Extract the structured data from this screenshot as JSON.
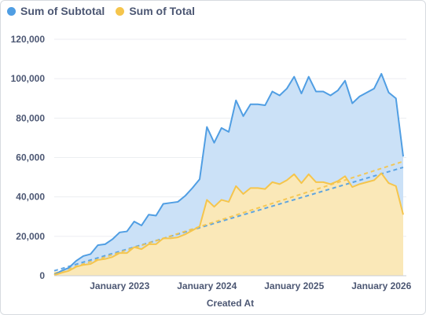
{
  "legend": {
    "items": [
      {
        "label": "Sum of Subtotal",
        "color": "#509ee3"
      },
      {
        "label": "Sum of Total",
        "color": "#f5c54c"
      }
    ]
  },
  "colors": {
    "subtotal_line": "#509ee3",
    "subtotal_fill": "#cbe1f7",
    "total_line": "#f5c54c",
    "total_fill": "#fae8b8",
    "grid": "#eceef1",
    "text": "#4c5773"
  },
  "chart_data": {
    "type": "area",
    "xlabel": "Created At",
    "ylabel": "",
    "x_type": "date",
    "xlim": [
      "2022-04",
      "2026-04"
    ],
    "ylim": [
      0,
      120000
    ],
    "y_ticks": [
      0,
      20000,
      40000,
      60000,
      80000,
      100000,
      120000
    ],
    "y_tick_labels": [
      "0",
      "20,000",
      "40,000",
      "60,000",
      "80,000",
      "100,000",
      "120,000"
    ],
    "x_ticks": [
      "2023-01",
      "2024-01",
      "2025-01",
      "2026-01"
    ],
    "x_tick_labels": [
      "January 2023",
      "January 2024",
      "January 2025",
      "January 2026"
    ],
    "grid": true,
    "legend_position": "top-left",
    "x": [
      "2022-04",
      "2022-05",
      "2022-06",
      "2022-07",
      "2022-08",
      "2022-09",
      "2022-10",
      "2022-11",
      "2022-12",
      "2023-01",
      "2023-02",
      "2023-03",
      "2023-04",
      "2023-05",
      "2023-06",
      "2023-07",
      "2023-08",
      "2023-09",
      "2023-10",
      "2023-11",
      "2023-12",
      "2024-01",
      "2024-02",
      "2024-03",
      "2024-04",
      "2024-05",
      "2024-06",
      "2024-07",
      "2024-08",
      "2024-09",
      "2024-10",
      "2024-11",
      "2024-12",
      "2025-01",
      "2025-02",
      "2025-03",
      "2025-04",
      "2025-05",
      "2025-06",
      "2025-07",
      "2025-08",
      "2025-09",
      "2025-10",
      "2025-11",
      "2025-12",
      "2026-01",
      "2026-02",
      "2026-03",
      "2026-04"
    ],
    "series": [
      {
        "name": "Sum of Subtotal",
        "color": "#509ee3",
        "values": [
          500,
          2500,
          4000,
          7500,
          10000,
          11000,
          15500,
          16000,
          18500,
          22000,
          22500,
          27500,
          25500,
          31000,
          30500,
          36500,
          37000,
          37500,
          40500,
          44500,
          49000,
          75500,
          67500,
          75000,
          73000,
          89000,
          81000,
          87000,
          87000,
          86500,
          93500,
          91500,
          95000,
          101000,
          92500,
          101000,
          93500,
          93500,
          91500,
          94000,
          99000,
          87500,
          91000,
          93000,
          95000,
          102500,
          93000,
          90000,
          60500
        ]
      },
      {
        "name": "Sum of Total",
        "color": "#f5c54c",
        "values": [
          300,
          1500,
          2500,
          4500,
          5500,
          6000,
          8000,
          8500,
          9500,
          11500,
          11500,
          14500,
          13500,
          16000,
          16000,
          19000,
          19000,
          19500,
          21000,
          23000,
          25000,
          38500,
          35000,
          38500,
          37500,
          45500,
          41500,
          44500,
          44500,
          44000,
          47500,
          46500,
          48500,
          51500,
          47000,
          51500,
          47500,
          47500,
          46500,
          48000,
          50500,
          45000,
          46500,
          47500,
          48500,
          52000,
          47000,
          45500,
          31000
        ]
      }
    ],
    "trendlines": [
      {
        "name": "Sum of Subtotal",
        "color": "#509ee3",
        "start": 2500,
        "end": 55000,
        "style": "dashed"
      },
      {
        "name": "Sum of Total",
        "color": "#f5c54c",
        "start": 1200,
        "end": 58000,
        "style": "dashed"
      }
    ]
  }
}
